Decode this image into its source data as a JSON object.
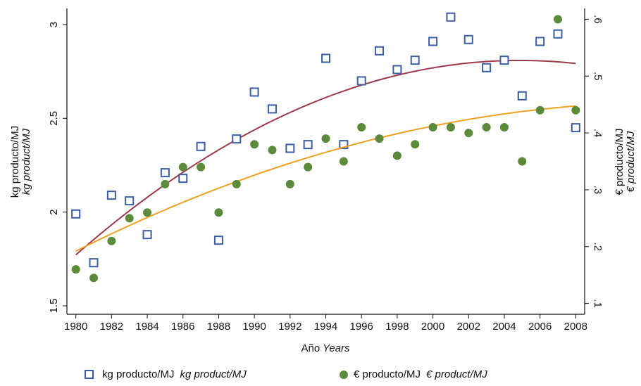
{
  "chart_data": {
    "type": "scatter",
    "xlabel": "Año",
    "xlabel_en": "Years",
    "ylabel": "kg producto/MJ",
    "ylabel_en": "kg product/MJ",
    "y2label": "€ producto/MJ",
    "y2label_en": "€ product/MJ",
    "x": [
      1980,
      1981,
      1982,
      1983,
      1984,
      1985,
      1986,
      1987,
      1988,
      1989,
      1990,
      1991,
      1992,
      1993,
      1994,
      1995,
      1996,
      1997,
      1998,
      1999,
      2000,
      2001,
      2002,
      2003,
      2004,
      2005,
      2006,
      2007,
      2008
    ],
    "fit": "quadratic",
    "series": [
      {
        "name": "kg producto/MJ",
        "name_en": "kg product/MJ",
        "color": "#3a5fa8",
        "marker": "square",
        "fit_color": "#9b3a4a",
        "values": [
          1.99,
          1.73,
          2.09,
          2.06,
          1.88,
          2.21,
          2.18,
          2.35,
          1.85,
          2.39,
          2.64,
          2.55,
          2.34,
          2.36,
          2.82,
          2.36,
          2.7,
          2.86,
          2.76,
          2.81,
          2.91,
          3.04,
          2.92,
          2.77,
          2.81,
          2.62,
          2.91,
          2.95,
          2.45
        ]
      },
      {
        "name": "€ producto/MJ",
        "name_en": "€ product/MJ",
        "color": "#5a8a3a",
        "marker": "circle",
        "fit_color": "#f0a020",
        "axis": "y2",
        "values": [
          0.16,
          0.145,
          0.21,
          0.25,
          0.26,
          0.31,
          0.34,
          0.34,
          0.26,
          0.31,
          0.38,
          0.37,
          0.31,
          0.34,
          0.39,
          0.35,
          0.41,
          0.39,
          0.36,
          0.38,
          0.41,
          0.41,
          0.4,
          0.41,
          0.41,
          0.35,
          0.44,
          0.6,
          0.44
        ]
      }
    ],
    "xlim": [
      1979.5,
      2008.5
    ],
    "xticks": [
      1980,
      1982,
      1984,
      1986,
      1988,
      1990,
      1992,
      1994,
      1996,
      1998,
      2000,
      2002,
      2004,
      2006,
      2008
    ],
    "ylim": [
      1.455,
      3.086
    ],
    "yticks": [
      1.5,
      2,
      2.5,
      3
    ],
    "y2lim": [
      0.081,
      0.619
    ],
    "y2ticks": [
      {
        "value": 0.1,
        "label": ".1"
      },
      {
        "value": 0.2,
        "label": ".2"
      },
      {
        "value": 0.3,
        "label": ".3"
      },
      {
        "value": 0.4,
        "label": ".4"
      },
      {
        "value": 0.5,
        "label": ".5"
      },
      {
        "value": 0.6,
        "label": ".6"
      }
    ]
  }
}
